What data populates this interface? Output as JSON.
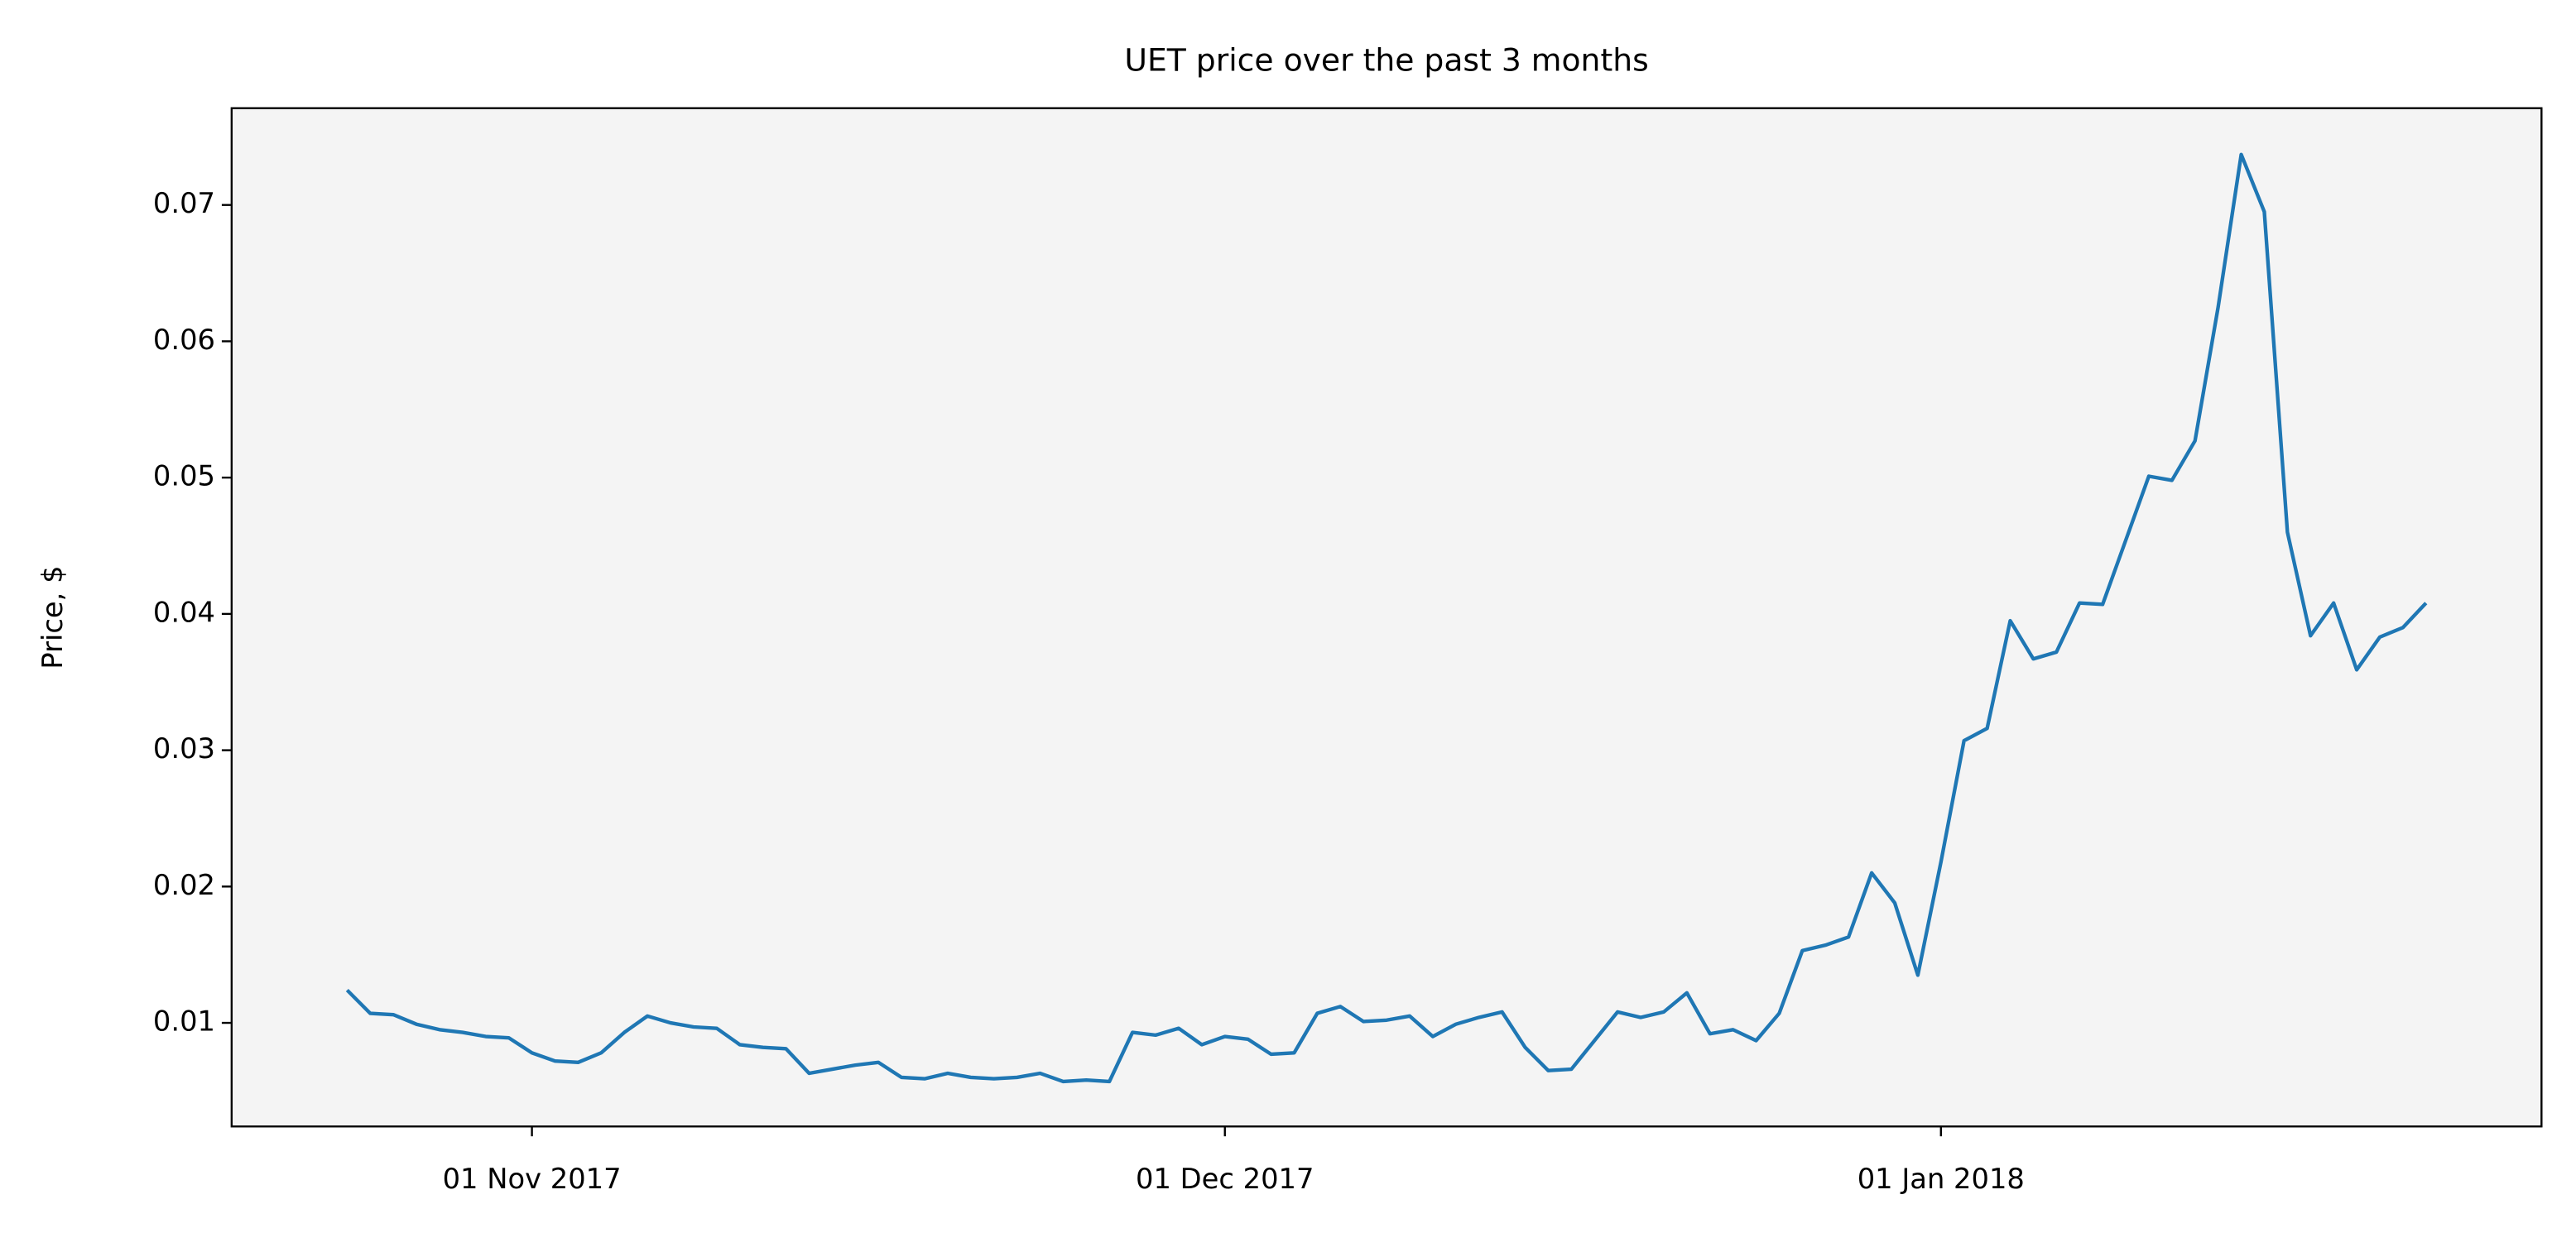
{
  "chart_data": {
    "type": "line",
    "title": "UET price over the past 3 months",
    "ylabel": "Price, $",
    "x": [
      "2017-10-24",
      "2017-10-25",
      "2017-10-26",
      "2017-10-27",
      "2017-10-28",
      "2017-10-29",
      "2017-10-30",
      "2017-10-31",
      "2017-11-01",
      "2017-11-02",
      "2017-11-03",
      "2017-11-04",
      "2017-11-05",
      "2017-11-06",
      "2017-11-07",
      "2017-11-08",
      "2017-11-09",
      "2017-11-10",
      "2017-11-11",
      "2017-11-12",
      "2017-11-13",
      "2017-11-14",
      "2017-11-15",
      "2017-11-16",
      "2017-11-17",
      "2017-11-18",
      "2017-11-19",
      "2017-11-20",
      "2017-11-21",
      "2017-11-22",
      "2017-11-23",
      "2017-11-24",
      "2017-11-25",
      "2017-11-26",
      "2017-11-27",
      "2017-11-28",
      "2017-11-29",
      "2017-11-30",
      "2017-12-01",
      "2017-12-02",
      "2017-12-03",
      "2017-12-04",
      "2017-12-05",
      "2017-12-06",
      "2017-12-07",
      "2017-12-08",
      "2017-12-09",
      "2017-12-10",
      "2017-12-11",
      "2017-12-12",
      "2017-12-13",
      "2017-12-14",
      "2017-12-15",
      "2017-12-16",
      "2017-12-17",
      "2017-12-18",
      "2017-12-19",
      "2017-12-20",
      "2017-12-21",
      "2017-12-22",
      "2017-12-23",
      "2017-12-24",
      "2017-12-25",
      "2017-12-26",
      "2017-12-27",
      "2017-12-28",
      "2017-12-29",
      "2017-12-30",
      "2017-12-31",
      "2018-01-01",
      "2018-01-02",
      "2018-01-03",
      "2018-01-04",
      "2018-01-05",
      "2018-01-06",
      "2018-01-07",
      "2018-01-08",
      "2018-01-09",
      "2018-01-10",
      "2018-01-11",
      "2018-01-12",
      "2018-01-13",
      "2018-01-14",
      "2018-01-15",
      "2018-01-16",
      "2018-01-17",
      "2018-01-18",
      "2018-01-19",
      "2018-01-20",
      "2018-01-21",
      "2018-01-22"
    ],
    "values": [
      0.0124,
      0.0107,
      0.0106,
      0.0099,
      0.0095,
      0.0093,
      0.009,
      0.0089,
      0.0078,
      0.0072,
      0.0071,
      0.0078,
      0.0093,
      0.0105,
      0.01,
      0.0097,
      0.0096,
      0.0084,
      0.0082,
      0.0081,
      0.0063,
      0.0066,
      0.0069,
      0.0071,
      0.006,
      0.0059,
      0.0063,
      0.006,
      0.0059,
      0.006,
      0.0063,
      0.0057,
      0.0058,
      0.0057,
      0.0093,
      0.0091,
      0.0096,
      0.0084,
      0.009,
      0.0088,
      0.0077,
      0.0078,
      0.0107,
      0.0112,
      0.0101,
      0.0102,
      0.0105,
      0.009,
      0.0099,
      0.0104,
      0.0108,
      0.0082,
      0.0065,
      0.0066,
      0.0087,
      0.0108,
      0.0104,
      0.0108,
      0.0122,
      0.0092,
      0.0095,
      0.0087,
      0.0107,
      0.0153,
      0.0157,
      0.0163,
      0.021,
      0.0188,
      0.0135,
      0.0218,
      0.0307,
      0.0316,
      0.0395,
      0.0367,
      0.0372,
      0.0408,
      0.0407,
      0.0454,
      0.0501,
      0.0498,
      0.0527,
      0.0625,
      0.0737,
      0.0695,
      0.046,
      0.0384,
      0.0408,
      0.0359,
      0.0383,
      0.039,
      0.0408
    ],
    "color": "#1f77b4",
    "xlim": [
      "2017-10-19",
      "2018-01-27"
    ],
    "xticks": [
      {
        "value": "2017-11-01",
        "label": "01 Nov 2017"
      },
      {
        "value": "2017-12-01",
        "label": "01 Dec 2017"
      },
      {
        "value": "2018-01-01",
        "label": "01 Jan 2018"
      }
    ],
    "ylim": [
      0.0024,
      0.0771
    ],
    "yticks": [
      0.01,
      0.02,
      0.03,
      0.04,
      0.05,
      0.06,
      0.07
    ],
    "grid": false
  }
}
